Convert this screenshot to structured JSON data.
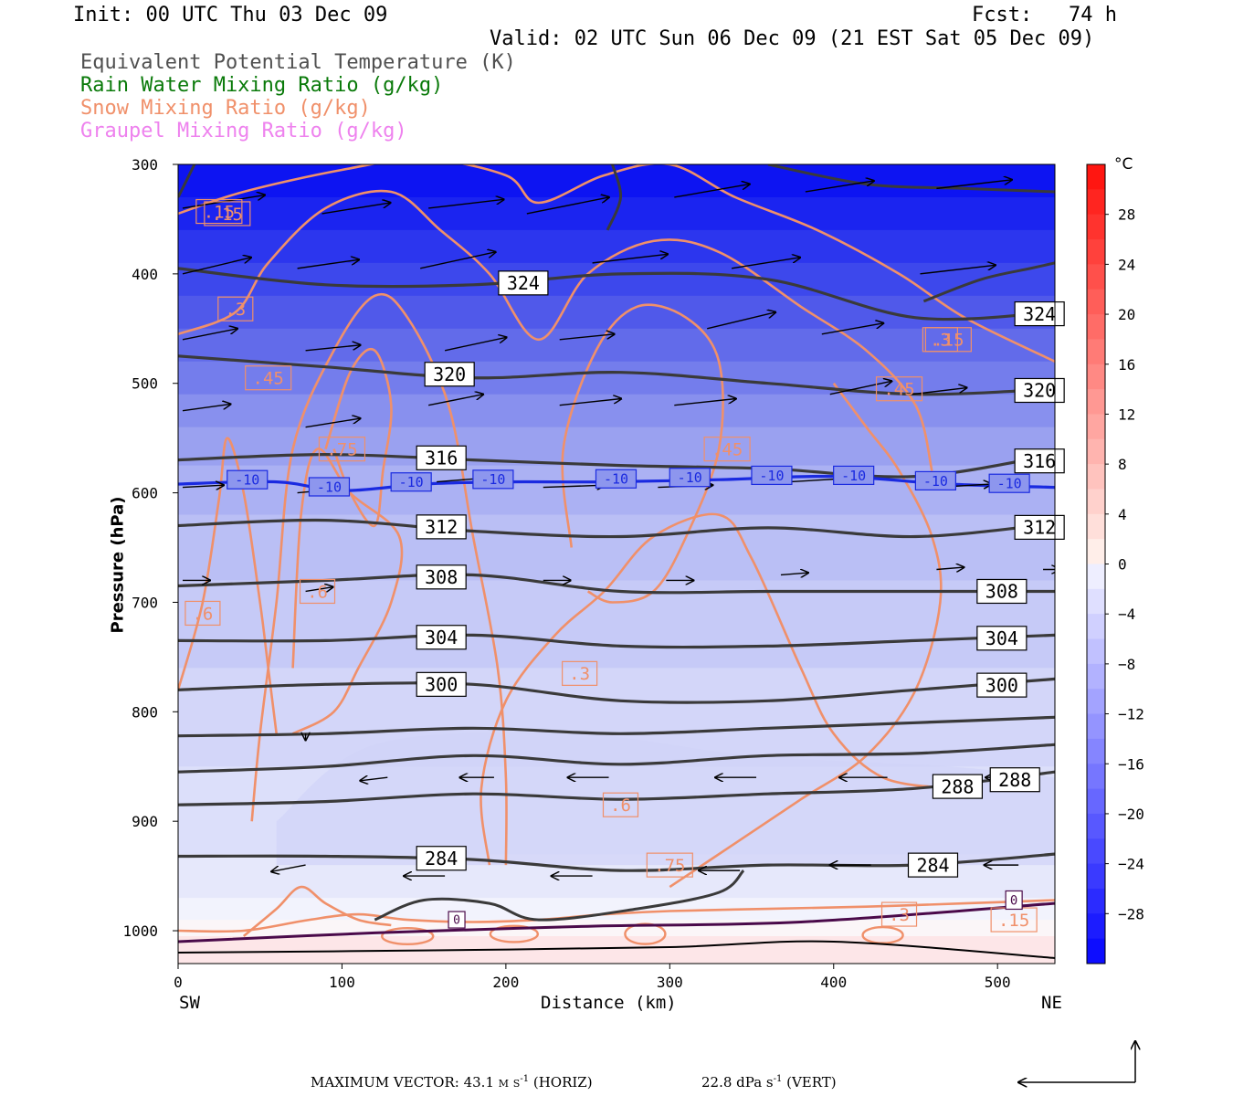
{
  "header": {
    "init": "Init: 00 UTC Thu 03 Dec 09",
    "fcst": "Fcst:   74 h",
    "valid": "Valid: 02 UTC Sun 06 Dec 09 (21 EST Sat 05 Dec 09)",
    "fields": [
      {
        "label": "Equivalent Potential Temperature (K)",
        "color": "#505050"
      },
      {
        "label": "Rain Water Mixing Ratio (g/kg)",
        "color": "#0a7a0a"
      },
      {
        "label": "Snow Mixing Ratio (g/kg)",
        "color": "#f0906a"
      },
      {
        "label": "Graupel Mixing Ratio (g/kg)",
        "color": "#ee82ee"
      }
    ]
  },
  "chart_data": {
    "type": "heatmap",
    "xlabel": "Distance (km)",
    "ylabel": "Pressure (hPa)",
    "x_ticks": [
      0,
      100,
      200,
      300,
      400,
      500
    ],
    "y_ticks": [
      300,
      400,
      500,
      600,
      700,
      800,
      900,
      1000
    ],
    "xlim": [
      0,
      535
    ],
    "ylim": [
      1030,
      300
    ],
    "x_end_labels": {
      "left": "SW",
      "right": "NE"
    },
    "colorbar": {
      "unit": "°C",
      "ticks": [
        28,
        24,
        20,
        16,
        12,
        8,
        4,
        0,
        -4,
        -8,
        -12,
        -16,
        -20,
        -24,
        -28
      ],
      "range": [
        -32,
        32
      ]
    },
    "theta_e_contours": [
      {
        "label": "324",
        "p": [
          395,
          410,
          410,
          400,
          405,
          440,
          435
        ]
      },
      {
        "label": "320",
        "p": [
          475,
          485,
          495,
          490,
          500,
          510,
          505
        ]
      },
      {
        "label": "316",
        "p": [
          570,
          565,
          570,
          575,
          578,
          585,
          565
        ]
      },
      {
        "label": "312",
        "p": [
          630,
          625,
          635,
          640,
          632,
          640,
          628
        ]
      },
      {
        "label": "308",
        "p": [
          685,
          680,
          675,
          690,
          690,
          690,
          690
        ]
      },
      {
        "label": "304",
        "p": [
          735,
          735,
          730,
          740,
          740,
          735,
          730
        ]
      },
      {
        "label": "300",
        "p": [
          780,
          775,
          775,
          790,
          790,
          780,
          770
        ]
      },
      {
        "label": "",
        "p": [
          822,
          820,
          815,
          820,
          815,
          810,
          805
        ]
      },
      {
        "label": "",
        "p": [
          855,
          850,
          840,
          848,
          840,
          838,
          830
        ]
      },
      {
        "label": "288",
        "p": [
          885,
          882,
          875,
          880,
          875,
          870,
          855
        ]
      },
      {
        "label": "284",
        "p": [
          932,
          932,
          935,
          945,
          940,
          940,
          930
        ]
      }
    ],
    "theta_e_label_positions_km": {
      "324": [
        195,
        510
      ],
      "320": [
        150,
        510
      ],
      "316": [
        145,
        510
      ],
      "312": [
        145,
        510
      ],
      "308": [
        145,
        487
      ],
      "304": [
        145,
        487
      ],
      "300": [
        145,
        487
      ],
      "288": [
        460,
        495
      ],
      "284": [
        145,
        445
      ]
    },
    "temperature_minus10_contour": {
      "label": "-10",
      "p": [
        592,
        590,
        598,
        592,
        590,
        590,
        588,
        585,
        592,
        595
      ]
    },
    "snow_contour_labels": [
      ".15",
      ".3",
      ".45",
      ".6",
      ".75",
      ".6",
      ".3",
      ".45",
      ".6",
      ".75",
      ".45",
      ".3",
      ".3",
      ".15",
      ".15",
      ".15"
    ],
    "zero_contour_label": "0",
    "vector_key": {
      "horiz_label": "MAXIMUM VECTOR:  43.1 m s",
      "horiz_unit": " (HORIZ)",
      "vert_label": "22.8 dPa s",
      "vert_unit": " (VERT)",
      "exp": "-1"
    }
  }
}
